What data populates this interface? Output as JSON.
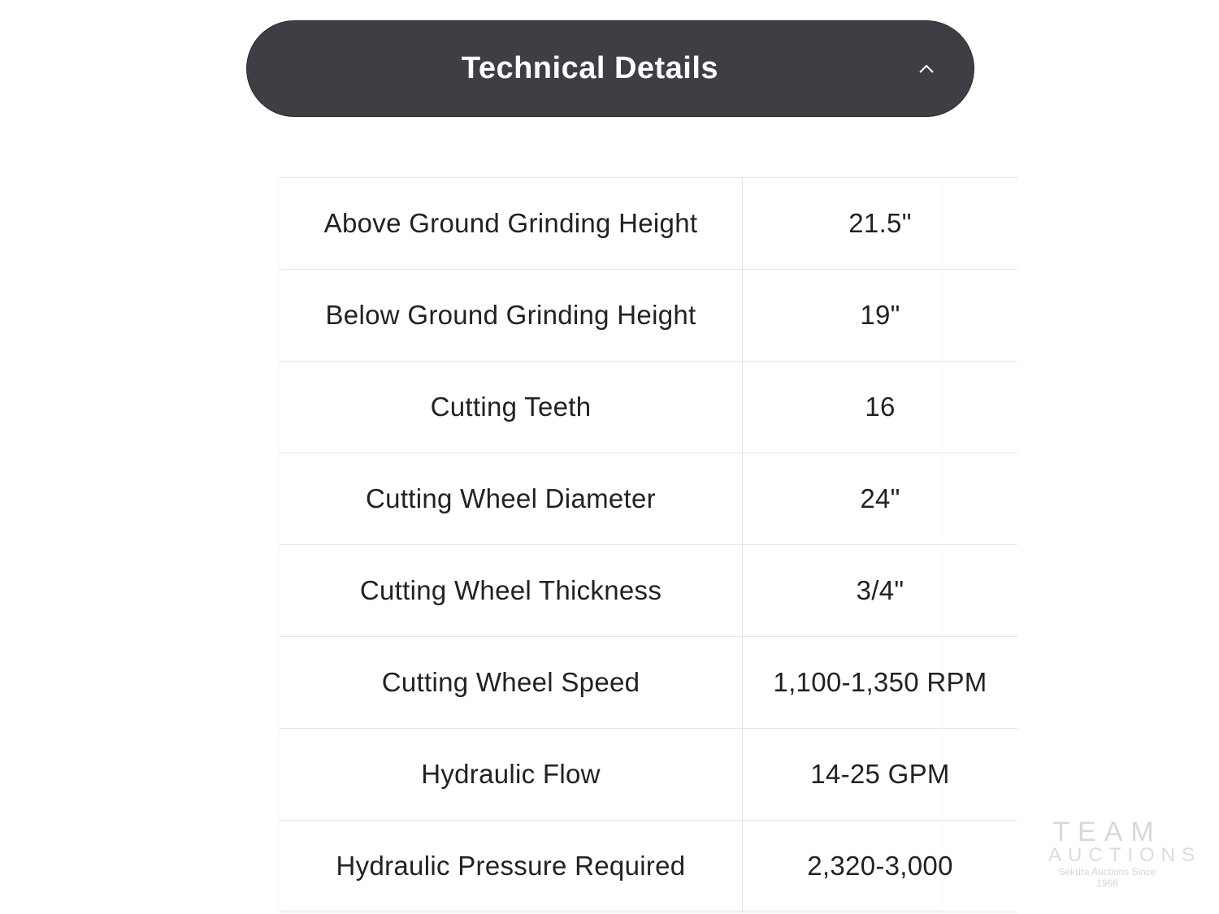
{
  "header": {
    "title": "Technical Details",
    "toggle_icon": "chevron-up-icon",
    "background": "#3e3f45"
  },
  "specs": [
    {
      "label": "Above Ground Grinding Height",
      "value": "21.5\""
    },
    {
      "label": "Below Ground Grinding Height",
      "value": "19\""
    },
    {
      "label": "Cutting Teeth",
      "value": "16"
    },
    {
      "label": "Cutting Wheel Diameter",
      "value": "24\""
    },
    {
      "label": "Cutting Wheel Thickness",
      "value": "3/4\""
    },
    {
      "label": "Cutting Wheel Speed",
      "value": "1,100-1,350 RPM"
    },
    {
      "label": "Hydraulic Flow",
      "value": "14-25 GPM"
    },
    {
      "label": "Hydraulic Pressure Required",
      "value": "2,320-3,000"
    }
  ],
  "watermark": {
    "line1": "TEAM",
    "line2": "AUCTIONS",
    "line3": "Sekura Auctions Since 1966"
  }
}
